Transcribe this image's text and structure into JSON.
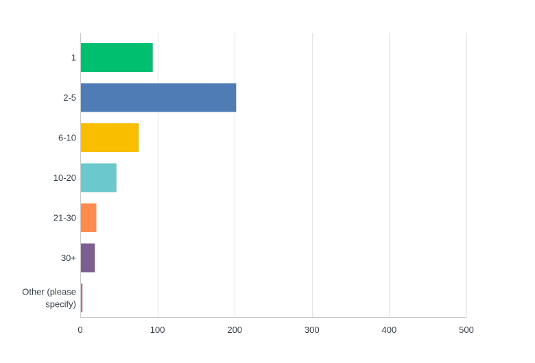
{
  "chart_data": {
    "type": "bar",
    "orientation": "horizontal",
    "title": "",
    "xlabel": "",
    "ylabel": "",
    "categories": [
      "1",
      "2-5",
      "6-10",
      "10-20",
      "21-30",
      "30+",
      "Other (please specify)"
    ],
    "category_lines": [
      [
        "1"
      ],
      [
        "2-5"
      ],
      [
        "6-10"
      ],
      [
        "10-20"
      ],
      [
        "21-30"
      ],
      [
        "30+"
      ],
      [
        "Other (please",
        "specify)"
      ]
    ],
    "values": [
      93,
      201,
      75,
      46,
      20,
      18,
      2
    ],
    "colors": [
      "#00bf6f",
      "#507cb6",
      "#f9be00",
      "#6bc8cd",
      "#ff8b4f",
      "#7d5e90",
      "#d25f90"
    ],
    "xlim": [
      0,
      500
    ],
    "xticks": [
      0,
      100,
      200,
      300,
      400,
      500
    ],
    "grid": true,
    "legend": "none"
  }
}
